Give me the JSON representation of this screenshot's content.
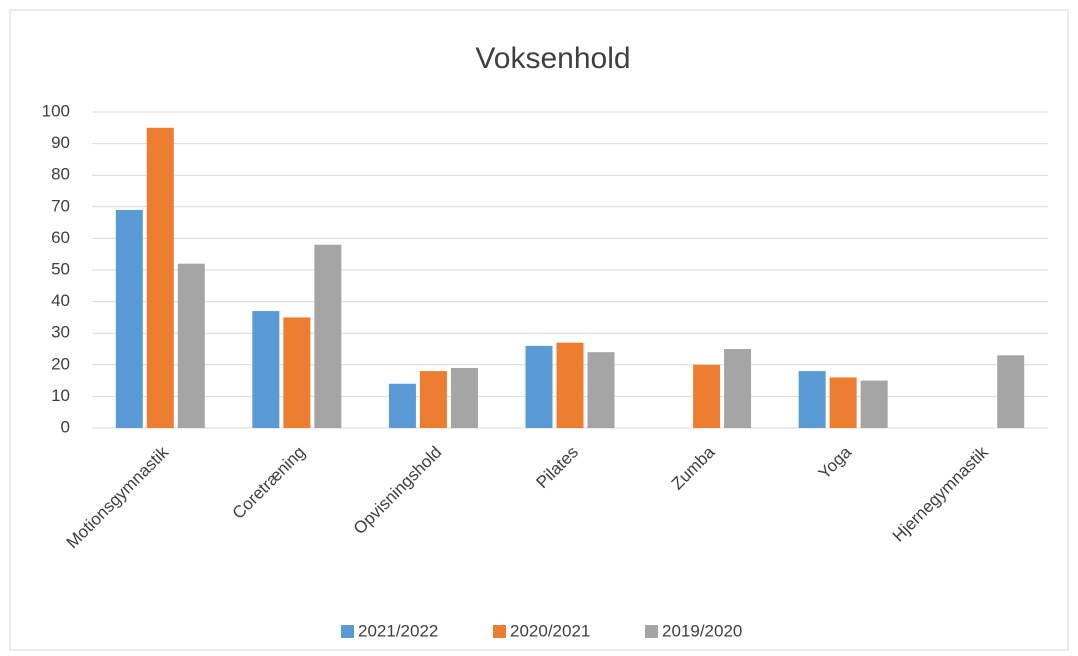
{
  "chart_data": {
    "type": "bar",
    "title": "Voksenhold",
    "categories": [
      "Motionsgymnastik",
      "Coretræning",
      "Opvisningshold",
      "Pilates",
      "Zumba",
      "Yoga",
      "Hjernegymnastik"
    ],
    "series": [
      {
        "name": "2021/2022",
        "color": "#5b9bd5",
        "values": [
          69,
          37,
          14,
          26,
          null,
          18,
          null
        ]
      },
      {
        "name": "2020/2021",
        "color": "#ed7d31",
        "values": [
          95,
          35,
          18,
          27,
          20,
          16,
          null
        ]
      },
      {
        "name": "2019/2020",
        "color": "#a5a5a5",
        "values": [
          52,
          58,
          19,
          24,
          25,
          15,
          23
        ]
      }
    ],
    "ylim": [
      0,
      100
    ],
    "yticks": [
      0,
      10,
      20,
      30,
      40,
      50,
      60,
      70,
      80,
      90,
      100
    ],
    "grid": true,
    "legend": "bottom"
  }
}
